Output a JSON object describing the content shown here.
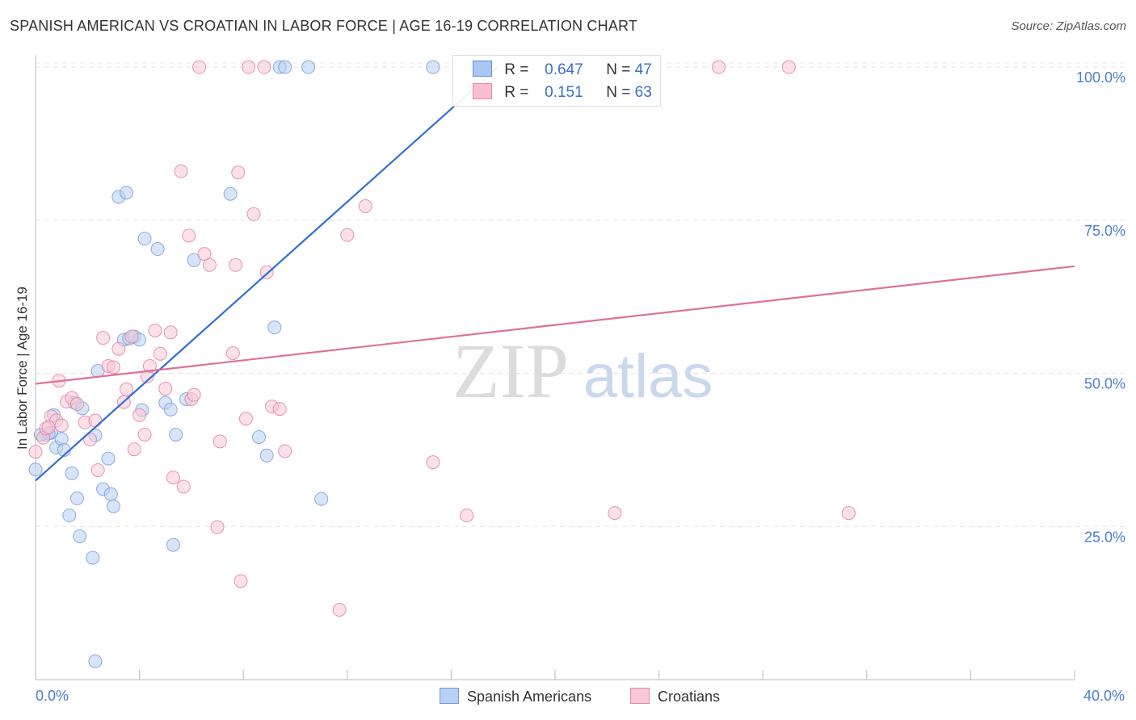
{
  "title": "SPANISH AMERICAN VS CROATIAN IN LABOR FORCE | AGE 16-19 CORRELATION CHART",
  "source": "Source: ZipAtlas.com",
  "watermark": {
    "zip": "ZIP",
    "atlas": "atlas"
  },
  "legend": {
    "r_label": "R =",
    "n_label": "N =",
    "rows": [
      {
        "r": "0.647",
        "n": "47",
        "fill": "#a9c7f0",
        "stroke": "#5f93d8"
      },
      {
        "r": "0.151",
        "n": "63",
        "fill": "#f7bfd0",
        "stroke": "#e58aa8"
      }
    ]
  },
  "bottom_legend": [
    {
      "label": "Spanish Americans",
      "fill": "#b8d0f2",
      "stroke": "#6d9ad9"
    },
    {
      "label": "Croatians",
      "fill": "#f9c8d7",
      "stroke": "#e58aa8"
    }
  ],
  "chart_data": {
    "type": "scatter",
    "title": "SPANISH AMERICAN VS CROATIAN IN LABOR FORCE | AGE 16-19 CORRELATION CHART",
    "xlabel": "",
    "ylabel": "In Labor Force | Age 16-19",
    "xlim": [
      0,
      40
    ],
    "ylim": [
      0,
      102
    ],
    "x_tick_labels": [
      "0.0%",
      "40.0%"
    ],
    "y_ticks": [
      25,
      50,
      75,
      100
    ],
    "y_tick_labels": [
      "25.0%",
      "50.0%",
      "75.0%",
      "100.0%"
    ],
    "grid": true,
    "legend_position": "top-center",
    "series": [
      {
        "name": "Spanish Americans",
        "color": "#6d9ad9",
        "fill": "#b8d0f2",
        "trend": {
          "x": [
            0,
            17.8
          ],
          "y": [
            32.5,
            100
          ]
        },
        "points": [
          {
            "x": 0.0,
            "y": 34.3
          },
          {
            "x": 0.4,
            "y": 40.0
          },
          {
            "x": 0.6,
            "y": 40.3
          },
          {
            "x": 0.7,
            "y": 43.2
          },
          {
            "x": 0.8,
            "y": 37.9
          },
          {
            "x": 1.0,
            "y": 39.3
          },
          {
            "x": 1.1,
            "y": 37.5
          },
          {
            "x": 1.3,
            "y": 26.8
          },
          {
            "x": 1.4,
            "y": 33.7
          },
          {
            "x": 1.5,
            "y": 45.2
          },
          {
            "x": 1.6,
            "y": 29.6
          },
          {
            "x": 1.7,
            "y": 23.4
          },
          {
            "x": 1.8,
            "y": 44.3
          },
          {
            "x": 2.2,
            "y": 19.9
          },
          {
            "x": 2.3,
            "y": 3.0
          },
          {
            "x": 2.3,
            "y": 39.9
          },
          {
            "x": 2.4,
            "y": 50.4
          },
          {
            "x": 2.6,
            "y": 31.1
          },
          {
            "x": 2.8,
            "y": 36.1
          },
          {
            "x": 2.9,
            "y": 30.3
          },
          {
            "x": 3.0,
            "y": 28.3
          },
          {
            "x": 3.2,
            "y": 78.8
          },
          {
            "x": 3.4,
            "y": 55.5
          },
          {
            "x": 3.5,
            "y": 79.5
          },
          {
            "x": 3.6,
            "y": 55.7
          },
          {
            "x": 3.8,
            "y": 56.0
          },
          {
            "x": 4.0,
            "y": 55.5
          },
          {
            "x": 4.1,
            "y": 44.0
          },
          {
            "x": 4.2,
            "y": 72.0
          },
          {
            "x": 4.7,
            "y": 70.3
          },
          {
            "x": 5.0,
            "y": 45.2
          },
          {
            "x": 5.2,
            "y": 44.1
          },
          {
            "x": 5.3,
            "y": 22.0
          },
          {
            "x": 5.4,
            "y": 40.0
          },
          {
            "x": 5.8,
            "y": 45.8
          },
          {
            "x": 6.1,
            "y": 68.5
          },
          {
            "x": 7.5,
            "y": 79.3
          },
          {
            "x": 8.6,
            "y": 39.6
          },
          {
            "x": 8.9,
            "y": 36.6
          },
          {
            "x": 9.2,
            "y": 57.5
          },
          {
            "x": 9.4,
            "y": 100.0
          },
          {
            "x": 9.6,
            "y": 100.0
          },
          {
            "x": 10.5,
            "y": 100.0
          },
          {
            "x": 11.0,
            "y": 29.5
          },
          {
            "x": 15.3,
            "y": 100.0
          },
          {
            "x": 0.2,
            "y": 40.0
          },
          {
            "x": 0.5,
            "y": 40.2
          }
        ]
      },
      {
        "name": "Croatians",
        "color": "#e07aa0",
        "fill": "#f9c8d7",
        "trend": {
          "x": [
            0,
            40
          ],
          "y": [
            48.3,
            67.5
          ]
        },
        "points": [
          {
            "x": 0.0,
            "y": 37.2
          },
          {
            "x": 0.3,
            "y": 39.5
          },
          {
            "x": 0.4,
            "y": 41.0
          },
          {
            "x": 0.6,
            "y": 43.0
          },
          {
            "x": 0.8,
            "y": 42.3
          },
          {
            "x": 0.9,
            "y": 48.8
          },
          {
            "x": 1.0,
            "y": 41.5
          },
          {
            "x": 1.2,
            "y": 45.4
          },
          {
            "x": 1.4,
            "y": 46.0
          },
          {
            "x": 1.6,
            "y": 45.0
          },
          {
            "x": 1.9,
            "y": 42.0
          },
          {
            "x": 2.1,
            "y": 39.2
          },
          {
            "x": 2.3,
            "y": 42.3
          },
          {
            "x": 2.4,
            "y": 34.2
          },
          {
            "x": 2.6,
            "y": 55.8
          },
          {
            "x": 2.8,
            "y": 51.2
          },
          {
            "x": 3.0,
            "y": 51.0
          },
          {
            "x": 3.2,
            "y": 54.0
          },
          {
            "x": 3.4,
            "y": 45.3
          },
          {
            "x": 3.5,
            "y": 47.4
          },
          {
            "x": 3.7,
            "y": 56.0
          },
          {
            "x": 3.8,
            "y": 37.6
          },
          {
            "x": 4.0,
            "y": 43.2
          },
          {
            "x": 4.2,
            "y": 40.0
          },
          {
            "x": 4.3,
            "y": 49.5
          },
          {
            "x": 4.4,
            "y": 51.2
          },
          {
            "x": 4.6,
            "y": 57.0
          },
          {
            "x": 4.8,
            "y": 53.2
          },
          {
            "x": 5.0,
            "y": 47.5
          },
          {
            "x": 5.2,
            "y": 56.7
          },
          {
            "x": 5.3,
            "y": 33.0
          },
          {
            "x": 5.6,
            "y": 83.0
          },
          {
            "x": 5.7,
            "y": 31.5
          },
          {
            "x": 5.9,
            "y": 72.5
          },
          {
            "x": 6.0,
            "y": 45.8
          },
          {
            "x": 6.1,
            "y": 46.5
          },
          {
            "x": 6.3,
            "y": 100.0
          },
          {
            "x": 6.5,
            "y": 69.5
          },
          {
            "x": 6.7,
            "y": 67.7
          },
          {
            "x": 7.0,
            "y": 24.9
          },
          {
            "x": 7.1,
            "y": 38.9
          },
          {
            "x": 7.6,
            "y": 53.3
          },
          {
            "x": 7.7,
            "y": 67.7
          },
          {
            "x": 7.8,
            "y": 82.8
          },
          {
            "x": 7.9,
            "y": 16.1
          },
          {
            "x": 8.1,
            "y": 42.6
          },
          {
            "x": 8.2,
            "y": 100.0
          },
          {
            "x": 8.4,
            "y": 76.0
          },
          {
            "x": 8.8,
            "y": 100.0
          },
          {
            "x": 8.9,
            "y": 66.5
          },
          {
            "x": 9.1,
            "y": 44.6
          },
          {
            "x": 9.4,
            "y": 44.2
          },
          {
            "x": 9.6,
            "y": 37.3
          },
          {
            "x": 11.7,
            "y": 11.4
          },
          {
            "x": 12.0,
            "y": 72.6
          },
          {
            "x": 12.7,
            "y": 77.3
          },
          {
            "x": 15.3,
            "y": 35.5
          },
          {
            "x": 16.6,
            "y": 26.8
          },
          {
            "x": 22.3,
            "y": 27.2
          },
          {
            "x": 26.3,
            "y": 100.0
          },
          {
            "x": 29.0,
            "y": 100.0
          },
          {
            "x": 31.3,
            "y": 27.2
          },
          {
            "x": 0.5,
            "y": 41.2
          }
        ]
      }
    ]
  }
}
